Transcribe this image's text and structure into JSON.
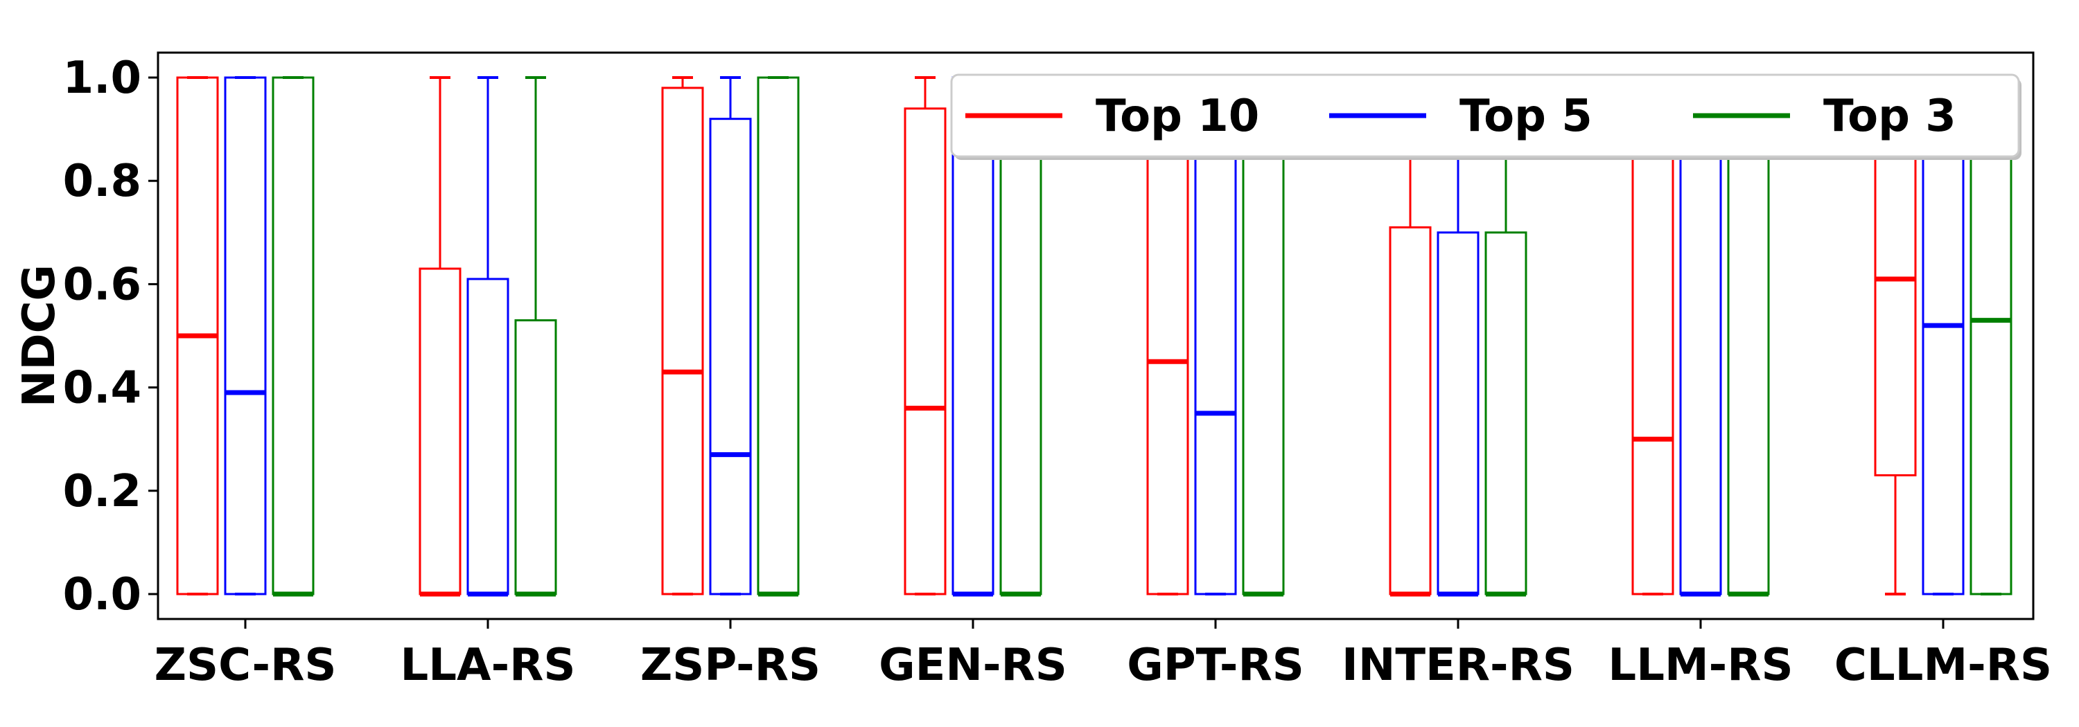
{
  "chart_data": {
    "type": "box",
    "ylabel": "NDCG",
    "xlabel": "",
    "ylim": [
      0.0,
      1.05
    ],
    "yticks": [
      "0.0",
      "0.2",
      "0.4",
      "0.6",
      "0.8",
      "1.0"
    ],
    "categories": [
      "ZSC-RS",
      "LLA-RS",
      "ZSP-RS",
      "GEN-RS",
      "GPT-RS",
      "INTER-RS",
      "LLM-RS",
      "CLLM-RS"
    ],
    "legend_position": "top-right",
    "grid": false,
    "series": [
      {
        "name": "Top 10",
        "color": "#ff0000",
        "boxes": [
          {
            "whislo": 0.0,
            "q1": 0.0,
            "med": 0.5,
            "q3": 1.0,
            "whishi": 1.0
          },
          {
            "whislo": 0.0,
            "q1": 0.0,
            "med": 0.0,
            "q3": 0.63,
            "whishi": 1.0
          },
          {
            "whislo": 0.0,
            "q1": 0.0,
            "med": 0.43,
            "q3": 0.98,
            "whishi": 1.0
          },
          {
            "whislo": 0.0,
            "q1": 0.0,
            "med": 0.36,
            "q3": 0.94,
            "whishi": 1.0
          },
          {
            "whislo": 0.0,
            "q1": 0.0,
            "med": 0.45,
            "q3": 1.0,
            "whishi": 1.0
          },
          {
            "whislo": 0.0,
            "q1": 0.0,
            "med": 0.0,
            "q3": 0.71,
            "whishi": 1.0
          },
          {
            "whislo": 0.0,
            "q1": 0.0,
            "med": 0.3,
            "q3": 1.0,
            "whishi": 1.0
          },
          {
            "whislo": 0.0,
            "q1": 0.23,
            "med": 0.61,
            "q3": 1.0,
            "whishi": 1.0
          }
        ]
      },
      {
        "name": "Top 5",
        "color": "#0000ff",
        "boxes": [
          {
            "whislo": 0.0,
            "q1": 0.0,
            "med": 0.39,
            "q3": 1.0,
            "whishi": 1.0
          },
          {
            "whislo": 0.0,
            "q1": 0.0,
            "med": 0.0,
            "q3": 0.61,
            "whishi": 1.0
          },
          {
            "whislo": 0.0,
            "q1": 0.0,
            "med": 0.27,
            "q3": 0.92,
            "whishi": 1.0
          },
          {
            "whislo": 0.0,
            "q1": 0.0,
            "med": 0.0,
            "q3": 1.0,
            "whishi": 1.0
          },
          {
            "whislo": 0.0,
            "q1": 0.0,
            "med": 0.35,
            "q3": 1.0,
            "whishi": 1.0
          },
          {
            "whislo": 0.0,
            "q1": 0.0,
            "med": 0.0,
            "q3": 0.7,
            "whishi": 1.0
          },
          {
            "whislo": 0.0,
            "q1": 0.0,
            "med": 0.0,
            "q3": 1.0,
            "whishi": 1.0
          },
          {
            "whislo": 0.0,
            "q1": 0.0,
            "med": 0.52,
            "q3": 1.0,
            "whishi": 1.0
          }
        ]
      },
      {
        "name": "Top 3",
        "color": "#008000",
        "boxes": [
          {
            "whislo": 0.0,
            "q1": 0.0,
            "med": 0.0,
            "q3": 1.0,
            "whishi": 1.0
          },
          {
            "whislo": 0.0,
            "q1": 0.0,
            "med": 0.0,
            "q3": 0.53,
            "whishi": 1.0
          },
          {
            "whislo": 0.0,
            "q1": 0.0,
            "med": 0.0,
            "q3": 1.0,
            "whishi": 1.0
          },
          {
            "whislo": 0.0,
            "q1": 0.0,
            "med": 0.0,
            "q3": 1.0,
            "whishi": 1.0
          },
          {
            "whislo": 0.0,
            "q1": 0.0,
            "med": 0.0,
            "q3": 1.0,
            "whishi": 1.0
          },
          {
            "whislo": 0.0,
            "q1": 0.0,
            "med": 0.0,
            "q3": 0.7,
            "whishi": 1.0
          },
          {
            "whislo": 0.0,
            "q1": 0.0,
            "med": 0.0,
            "q3": 1.0,
            "whishi": 1.0
          },
          {
            "whislo": 0.0,
            "q1": 0.0,
            "med": 0.53,
            "q3": 1.0,
            "whishi": 1.0
          }
        ]
      }
    ]
  }
}
